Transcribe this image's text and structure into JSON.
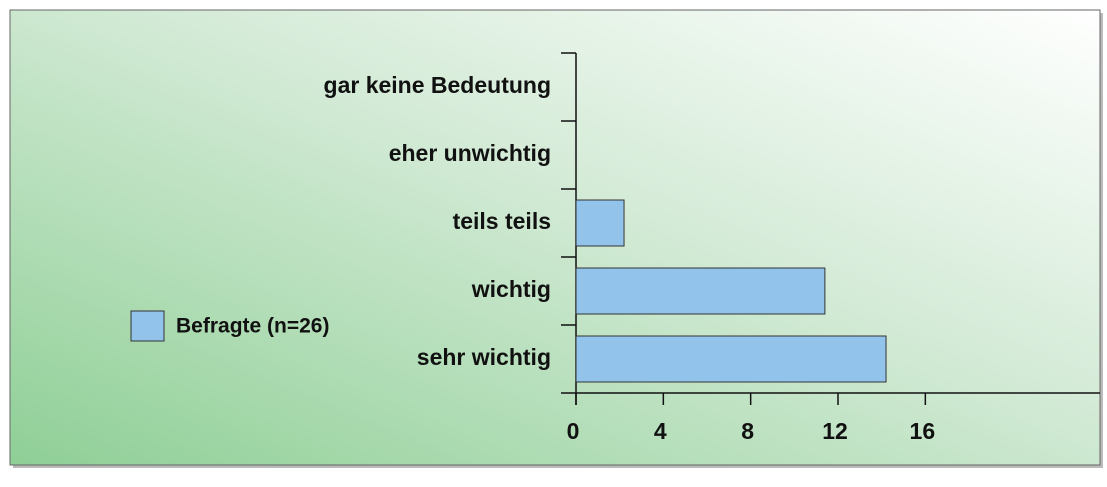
{
  "chart_data": {
    "type": "bar",
    "orientation": "horizontal",
    "categories": [
      "gar keine Bedeutung",
      "eher unwichtig",
      "teils teils",
      "wichtig",
      "sehr wichtig"
    ],
    "series": [
      {
        "name": "Befragte (n=26)",
        "color": "#92c3eb",
        "values": [
          0,
          0,
          2.2,
          11.4,
          14.2
        ]
      }
    ],
    "xlim": [
      0,
      24
    ],
    "xticks": [
      0,
      4,
      8,
      12,
      16
    ],
    "legend": "left"
  }
}
